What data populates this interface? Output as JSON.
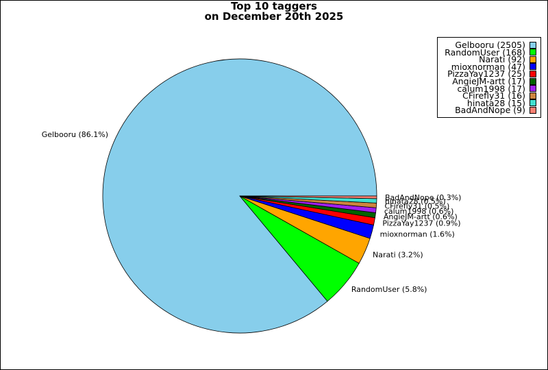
{
  "chart_data": {
    "type": "pie",
    "title_lines": [
      "Top 10 taggers",
      "on December 20th 2025"
    ],
    "slices": [
      {
        "name": "Gelbooru",
        "value": 2505,
        "legend": "Gelbooru (2505)",
        "label": "Gelbooru (86.1%)",
        "color": "#87CEEB"
      },
      {
        "name": "RandomUser",
        "value": 168,
        "legend": "RandomUser (168)",
        "label": "RandomUser (5.8%)",
        "color": "#00FF00"
      },
      {
        "name": "Narati",
        "value": 92,
        "legend": "Narati (92)",
        "label": "Narati (3.2%)",
        "color": "#FFA500"
      },
      {
        "name": "mioxnorman",
        "value": 47,
        "legend": "mioxnorman (47)",
        "label": "mioxnorman (1.6%)",
        "color": "#0000FF"
      },
      {
        "name": "PizzaYay1237",
        "value": 25,
        "legend": "PizzaYay1237 (25)",
        "label": "PizzaYay1237 (0.9%)",
        "color": "#FF0000"
      },
      {
        "name": "AngieJM-artt",
        "value": 17,
        "legend": "AngieJM-artt (17)",
        "label": "AngieJM-artt (0.6%)",
        "color": "#006400"
      },
      {
        "name": "calum1998",
        "value": 17,
        "legend": "calum1998 (17)",
        "label": "calum1998 (0.6%)",
        "color": "#A020F0"
      },
      {
        "name": "CFirefly31",
        "value": 16,
        "legend": "CFirefly31 (16)",
        "label": "CFirefly31 (0.5%)",
        "color": "#CD853F"
      },
      {
        "name": "hinata28",
        "value": 15,
        "legend": "hinata28 (15)",
        "label": "hinata28 (0.5%)",
        "color": "#40E0D0"
      },
      {
        "name": "BadAndNope",
        "value": 9,
        "legend": "BadAndNope (9)",
        "label": "BadAndNope (0.3%)",
        "color": "#FA8072"
      }
    ],
    "legend_placement": "top-right"
  }
}
